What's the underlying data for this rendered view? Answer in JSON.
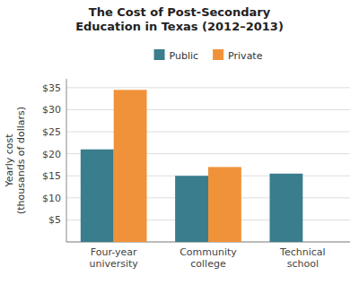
{
  "chart_data": {
    "type": "bar",
    "title": "The Cost of Post-Secondary\nEducation in Texas (2012–2013)",
    "y_label": "Yearly cost\n(thousands of dollars)",
    "categories": [
      "Four-year\nuniversity",
      "Community\ncollege",
      "Technical\nschool"
    ],
    "series": [
      {
        "name": "Public",
        "color": "#3a7d8c",
        "values": [
          21,
          15,
          15.5
        ]
      },
      {
        "name": "Private",
        "color": "#f0923a",
        "values": [
          34.5,
          17,
          null
        ]
      }
    ],
    "ylim": [
      0,
      37
    ],
    "yticks": [
      {
        "value": 0,
        "label": ""
      },
      {
        "value": 5,
        "label": "$5"
      },
      {
        "value": 10,
        "label": "$10"
      },
      {
        "value": 15,
        "label": "$15"
      },
      {
        "value": 20,
        "label": "$20"
      },
      {
        "value": 25,
        "label": "$25"
      },
      {
        "value": 30,
        "label": "$30"
      },
      {
        "value": 35,
        "label": "$35"
      }
    ],
    "grid": true,
    "legend": "top"
  }
}
